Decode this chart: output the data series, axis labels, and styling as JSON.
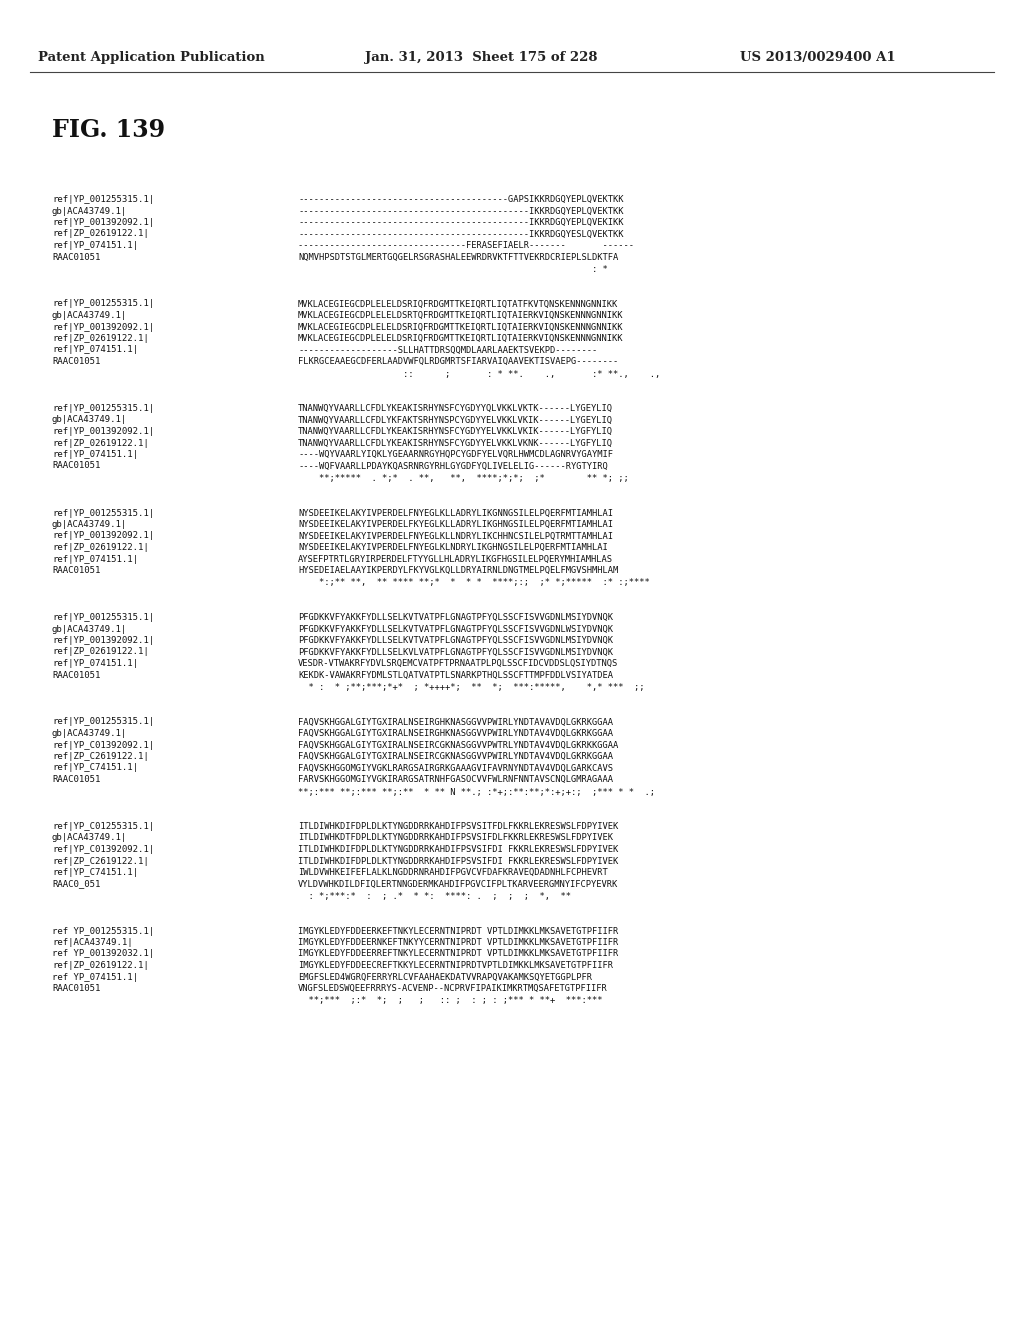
{
  "header_left": "Patent Application Publication",
  "header_middle": "Jan. 31, 2013  Sheet 175 of 228",
  "header_right": "US 2013/0029400 A1",
  "figure_label": "FIG. 139",
  "background_color": "#ffffff",
  "blocks": [
    {
      "labels": [
        "ref|YP_001255315.1|",
        "gb|ACA43749.1|",
        "ref|YP_001392092.1|",
        "ref|ZP_02619122.1|",
        "ref|YP_074151.1|",
        "RAAC01051"
      ],
      "sequences": [
        "----------------------------------------GAPSIKKRDGQYEPLQVEKTKK",
        "--------------------------------------------IKKRDGQYEPLQVEKTKK",
        "--------------------------------------------IKKRDGQYEPLQVEKIKK",
        "--------------------------------------------IKKRDGQYESLQVEKTKK",
        "--------------------------------FERASEFIAELR-------       ------",
        "NQMVHPSDTSTGLMERTGQGELRSGRASHALEEWRDRVKTFTTVEKRDCRIEPLSLDKTFA"
      ],
      "conservation": "                                                        : *"
    },
    {
      "labels": [
        "ref|YP_001255315.1|",
        "gb|ACA43749.1|",
        "ref|YP_001392092.1|",
        "ref|ZP_02619122.1|",
        "ref|YP_074151.1|",
        "RAAC01051"
      ],
      "sequences": [
        "MVKLACEGIEGCDPLELELDSRIQFRDGMTTKEIQRTLIQTATFKVTQNSKENNNGNNIKK",
        "MVKLACEGIEGCDPLELELDSRTQFRDGMTTKEIQRTLIQTAIERKVIQNSKENNNGNNIKK",
        "MVKLACEGIEGCDPLELELDSRIQFRDGMTTKEIQRTLIQTAIERKVIQNSKENNNGNNIKK",
        "MVKLACEGIEGCDPLELELDSRIQFRDGMTTKEIQRTLIQTAIERKVIQNSKENNNGNNIKK",
        "-------------------SLLHATTDRSQQMDLAARLAAEKTSVEKPD--------",
        "FLKRGCEAAEGCDFERLAADVWFQLRDGMRTSFIARVAIQAAVEKTISVAEPG--------"
      ],
      "conservation": "                    ::      ;       : * **.    .,       :* **.,    .,"
    },
    {
      "labels": [
        "ref|YP_001255315.1|",
        "gb|ACA43749.1|",
        "ref|YP_001392092.1|",
        "ref|ZP_02619122.1|",
        "ref|YP_074151.1|",
        "RAAC01051"
      ],
      "sequences": [
        "TNANWQYVAARLLCFDLYKEAKISRHYNSFCYGDYYQLVKKLVKTK------LYGEYLIQ",
        "TNANWQYVAARLLCFDLYKFAKTSRHYNSPCYGDYYELVKKLVKIK------LYGEYLIQ",
        "TNANWQYVAARLLCFDLYKEAKISRHYNSFCYGDYYELVKKLVKIK------LYGFYLIQ",
        "TNANWQYVAARLLCFDLYKEAKISRHYNSFCYGDYYELVKKLVKNK------LYGFYLIQ",
        "----WQYVAARLYIQKLYGEAARNRGYHQPCYGDFYELVQRLHWMCDLAGNRVYGAYMIF",
        "----WQFVAARLLPDAYKQASRNRGYRHLGYGDFYQLIVELELIG------RYGTYIRQ"
      ],
      "conservation": "    **;*****  . *;*  . **,   **,  ****;*;*;  ;*        ** *; ;;"
    },
    {
      "labels": [
        "ref|YP_001255315.1|",
        "gb|ACA43749.1|",
        "ref|YP_001392092.1|",
        "ref|ZP_02619122.1|",
        "ref|YP_074151.1|",
        "RAAC01051"
      ],
      "sequences": [
        "NYSDEEIKELAKYIVPERDELFNYEGLKLLADRYLIKGNNGSILELPQERFMTIAMHLAI",
        "NYSDEEIKELAKYIVPERDELFKYEGLKLLADRYLIKGHNGSILELPQERFMTIAMHLAI",
        "NYSDEEIKELAKYIVPERDELFNYEGLKLLNDRYLIKCHHNCSILELPQTRMTTAMHLAI",
        "NYSDEEIKELAKYIVPERDELFNYEGLKLNDRYLIKGHNGSILELPQERFMTIAMHLAI",
        "AYSEFPTRTLGRYIRPERDELFTYYGLLHLADRYLIKGFHGSILELPQERYMHIAMHLAS",
        "HYSEDEIAELAAYIKPERDYLFKYVGLKQLLDRYAIRNLDNGTMELPQELFMGVSHMHLAM"
      ],
      "conservation": "    *:;** **,  ** **** **;*  *  * *  ****;:;  ;* *;*****  :* :;****"
    },
    {
      "labels": [
        "ref|YP_001255315.1|",
        "gb|ACA43749.1|",
        "ref|YP_001392092.1|",
        "ref|ZP_02619122.1|",
        "ref|YP_074151.1|",
        "RAAC01051"
      ],
      "sequences": [
        "PFGDKKVFYAKKFYDLLSELKVTVATPFLGNAGTPFYQLSSCFISVVGDNLMSIYDVNQK",
        "PFGDKKVFYAKKFYDLLSELKVTVATPFLGNAGTPFYQLSSCFISVVGDNLWSIYDVNQK",
        "PFGDKKVFYAKKFYDLLSELKVTVATPFLGNAGTPFYQLSSCFISVVGDNLMSIYDVNQK",
        "PFGDKKVFYAKKFYDLLSELKVLVATPFLGNAGTPFYQLSSCFISVVGDNLMSIYDVNQK",
        "VESDR-VTWAKRFYDVLSRQEMCVATPFTPRNAATPLPQLSSCFIDCVDDSLQSIYDTNQS",
        "KEKDK-VAWAKRFYDMLSTLQATVATPTLSNARKPTHQLSSCFTTMPFDDLVSIYATDEA"
      ],
      "conservation": "  * :  * ;**;***;*+*  ; *++++*;  **  *;  ***:*****,    *,* ***  ;;"
    },
    {
      "labels": [
        "ref|YP_001255315.1|",
        "gb|ACA43749.1|",
        "ref|YP_C01392092.1|",
        "ref|ZP_C2619122.1|",
        "ref|YP_C74151.1|",
        "RAAC01051"
      ],
      "sequences": [
        "FAQVSKHGGALGIYTGXIRALNSEIRGHKNASGGVVPWIRLYNDTAVAVDQLGKRKGGAA",
        "FAQVSKHGGALGIYTGXIRALNSEIRGHKNASGGVVPWIRLYNDTAV4VDQLGKRKGGAA",
        "FAQVSKHGGALGIYTGXIRALNSEIRCGKNASGGVVPWTRLYNDTAV4VDQLGKRKKGGAA",
        "FAQVSKHGGALGIYTGXIRALNSEIRCGKNASGGVVPWIRLYNDTAV4VDQLGKRKGGAA",
        "FAQVSKHGGOMGIYVGKLRARGSAIRGRKGAAAGVIFAVRNYNDTAV4VDQLGARKCAVS",
        "FARVSKHGGOMGIYVGKIRARGSATRNHFGASOCVVFWLRNFNNTAVSCNQLGMRAGAAA"
      ],
      "conservation": "**;:*** **;:*** **;:**  * ** N **.; :*+;:**:**;*:+;+:;  ;*** * *  .;"
    },
    {
      "labels": [
        "ref|YP_C01255315.1|",
        "gb|ACA43749.1|",
        "ref|YP_C01392092.1|",
        "ref|ZP_C2619122.1|",
        "ref|YP_C74151.1|",
        "RAAC0_051"
      ],
      "sequences": [
        "ITLDIWHKDIFDPLDLKTYNGDDRRKAHDIFPSVSITFDLFKKRLEKRESWSLFDPYIVEK",
        "ITLDIWHKDTFDPLDLKTYNGDDRRKAHDIFPSVSIFDLFKKRLEKRESWSLFDPYIVEK",
        "ITLDIWHKDIFDPLDLKTYNGDDRRKAHDIFPSVSIFDI FKKRLEKRESWSLFDPYIVEK",
        "ITLDIWHKDIFDPLDLKTYNGDDRRKAHDIFPSVSIFDI FKKRLEKRESWSLFDPYIVEK",
        "IWLDVWHKEIFEFLALKLNGDDRNRAHDIFPGVCVFDAFKRAVEQDADNHLFCPHEVRT",
        "VYLDVWHKDILDFIQLERTNNGDERMKAHDIFPGVCIFPLTKARVEERGMNYIFCPYEVRK"
      ],
      "conservation": "  : *;***:*  :  ; .*  * *:  ****: .  ;  ;  ;  *,  **"
    },
    {
      "labels": [
        "ref YP_001255315.1|",
        "ref|ACA43749.1|",
        "ref YP_001392032.1|",
        "ref|ZP_02619122.1|",
        "ref YP_074151.1|",
        "RAAC01051"
      ],
      "sequences": [
        "IMGYKLEDYFDDEERKEFTNKYLECERNTNIPRDT VPTLDIMKKLMKSAVETGTPFIIFR",
        "IMGYKLEDYFDDEERNKEFTNKYYCERNTNIPRDT VPTLDIMKKLMKSAVETGTPFIIFR",
        "IMGYKLEDYFDDEERREFTNKYLECERNTNIPRDT VPTLDIMKKLMKSAVETGTPFIIFR",
        "IMGYKLEDYFDDEECREFTKKYLECERNTNIPRDTVPTLDIMKKLMKSAVETGTPFIIFR",
        "EMGFSLED4WGRQFERRYRLCVFAAHAEKDATVVRAPQVAKAMKSQYETGGPLPFR",
        "VNGFSLEDSWQEEFRRRYS-ACVENP--NCPRVFIPAIKIMKRTMQSAFETGTPFIIFR"
      ],
      "conservation": "  **;***  ;:*  *;  ;   ;   :: ;  : ; : ;*** * **+  ***:***"
    }
  ]
}
